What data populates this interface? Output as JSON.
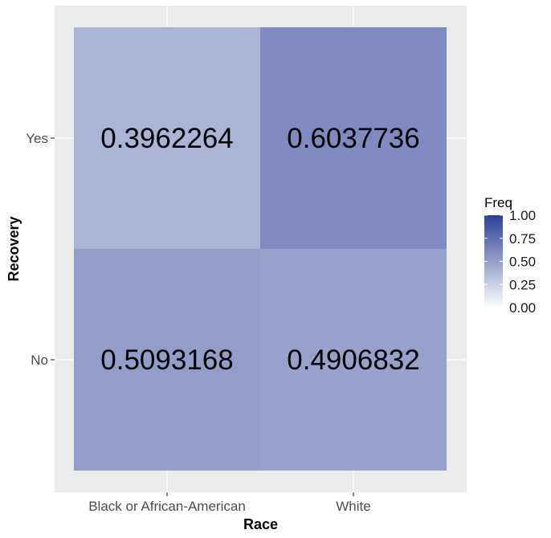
{
  "chart_data": {
    "type": "heatmap",
    "x_categories": [
      "Black or African-American",
      "White"
    ],
    "y_categories": [
      "No",
      "Yes"
    ],
    "cells": [
      {
        "x": "Black or African-American",
        "y": "Yes",
        "value": 0.3962264,
        "label": "0.3962264"
      },
      {
        "x": "White",
        "y": "Yes",
        "value": 0.6037736,
        "label": "0.6037736"
      },
      {
        "x": "Black or African-American",
        "y": "No",
        "value": 0.5093168,
        "label": "0.5093168"
      },
      {
        "x": "White",
        "y": "No",
        "value": 0.4906832,
        "label": "0.4906832"
      }
    ],
    "xlabel": "Race",
    "ylabel": "Recovery",
    "legend": {
      "title": "Freq",
      "ticks": [
        0.0,
        0.25,
        0.5,
        0.75,
        1.0
      ],
      "tick_labels": [
        "0.00",
        "0.25",
        "0.50",
        "0.75",
        "1.00"
      ],
      "low_color": "#ffffff",
      "high_color": "#2b3f97",
      "position": "right"
    },
    "panel_background": "#ebebeb",
    "grid_color": "#ffffff"
  }
}
